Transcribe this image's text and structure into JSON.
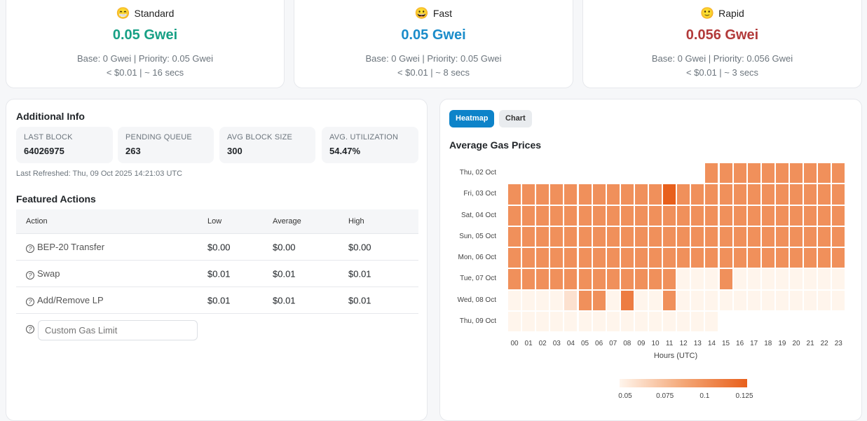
{
  "gas_cards": [
    {
      "emoji": "😁",
      "label": "Standard",
      "value": "0.05 Gwei",
      "color": "#17a085",
      "detail": "Base: 0 Gwei | Priority: 0.05 Gwei",
      "cost": "< $0.01 | ~ 16 secs"
    },
    {
      "emoji": "😀",
      "label": "Fast",
      "value": "0.05 Gwei",
      "color": "#1a8cca",
      "detail": "Base: 0 Gwei | Priority: 0.05 Gwei",
      "cost": "< $0.01 | ~ 8 secs"
    },
    {
      "emoji": "🙂",
      "label": "Rapid",
      "value": "0.056 Gwei",
      "color": "#b23a3a",
      "detail": "Base: 0 Gwei | Priority: 0.056 Gwei",
      "cost": "< $0.01 | ~ 3 secs"
    }
  ],
  "additional": {
    "title": "Additional Info",
    "stats": [
      {
        "label": "LAST BLOCK",
        "value": "64026975"
      },
      {
        "label": "PENDING QUEUE",
        "value": "263"
      },
      {
        "label": "AVG BLOCK SIZE",
        "value": "300"
      },
      {
        "label": "AVG. UTILIZATION",
        "value": "54.47%"
      }
    ],
    "refreshed": "Last Refreshed: Thu, 09 Oct 2025 14:21:03 UTC"
  },
  "featured": {
    "title": "Featured Actions",
    "headers": [
      "Action",
      "Low",
      "Average",
      "High"
    ],
    "rows": [
      [
        "BEP-20 Transfer",
        "$0.00",
        "$0.00",
        "$0.00"
      ],
      [
        "Swap",
        "$0.01",
        "$0.01",
        "$0.01"
      ],
      [
        "Add/Remove LP",
        "$0.01",
        "$0.01",
        "$0.01"
      ]
    ],
    "custom_placeholder": "Custom Gas Limit"
  },
  "tabs": {
    "heatmap": "Heatmap",
    "chart": "Chart"
  },
  "chart_data": {
    "type": "heatmap",
    "title": "Average Gas Prices",
    "xlabel": "Hours (UTC)",
    "rows": [
      "Thu, 02 Oct",
      "Fri, 03 Oct",
      "Sat, 04 Oct",
      "Sun, 05 Oct",
      "Mon, 06 Oct",
      "Tue, 07 Oct",
      "Wed, 08 Oct",
      "Thu, 09 Oct"
    ],
    "cols": [
      "00",
      "01",
      "02",
      "03",
      "04",
      "05",
      "06",
      "07",
      "08",
      "09",
      "10",
      "11",
      "12",
      "13",
      "14",
      "15",
      "16",
      "17",
      "18",
      "19",
      "20",
      "21",
      "22",
      "23"
    ],
    "values": [
      [
        null,
        null,
        null,
        null,
        null,
        null,
        null,
        null,
        null,
        null,
        null,
        null,
        null,
        null,
        0.1,
        0.1,
        0.1,
        0.1,
        0.1,
        0.1,
        0.1,
        0.1,
        0.1,
        0.1
      ],
      [
        0.1,
        0.1,
        0.1,
        0.1,
        0.1,
        0.1,
        0.1,
        0.1,
        0.1,
        0.1,
        0.1,
        0.125,
        0.1,
        0.1,
        0.1,
        0.1,
        0.1,
        0.1,
        0.1,
        0.1,
        0.1,
        0.1,
        0.1,
        0.1
      ],
      [
        0.1,
        0.1,
        0.1,
        0.1,
        0.1,
        0.1,
        0.1,
        0.1,
        0.1,
        0.1,
        0.1,
        0.1,
        0.1,
        0.1,
        0.1,
        0.1,
        0.1,
        0.1,
        0.1,
        0.1,
        0.1,
        0.1,
        0.1,
        0.1
      ],
      [
        0.1,
        0.1,
        0.1,
        0.1,
        0.1,
        0.1,
        0.1,
        0.1,
        0.1,
        0.1,
        0.1,
        0.1,
        0.1,
        0.1,
        0.1,
        0.1,
        0.1,
        0.1,
        0.1,
        0.1,
        0.1,
        0.1,
        0.1,
        0.1
      ],
      [
        0.1,
        0.1,
        0.1,
        0.1,
        0.1,
        0.1,
        0.1,
        0.1,
        0.1,
        0.1,
        0.1,
        0.1,
        0.1,
        0.1,
        0.1,
        0.1,
        0.1,
        0.1,
        0.1,
        0.1,
        0.1,
        0.1,
        0.1,
        0.1
      ],
      [
        0.1,
        0.1,
        0.1,
        0.1,
        0.1,
        0.1,
        0.1,
        0.1,
        0.1,
        0.1,
        0.1,
        0.1,
        0.05,
        0.05,
        0.05,
        0.1,
        0.05,
        0.05,
        0.05,
        0.05,
        0.05,
        0.05,
        0.05,
        0.05
      ],
      [
        0.05,
        0.05,
        0.05,
        0.05,
        0.06,
        0.1,
        0.1,
        0.05,
        0.11,
        0.05,
        0.05,
        0.1,
        0.05,
        0.05,
        0.05,
        0.05,
        0.05,
        0.05,
        0.05,
        0.05,
        0.05,
        0.05,
        0.05,
        0.05
      ],
      [
        0.05,
        0.05,
        0.05,
        0.05,
        0.05,
        0.05,
        0.05,
        0.05,
        0.05,
        0.05,
        0.05,
        0.05,
        0.05,
        0.05,
        0.05,
        null,
        null,
        null,
        null,
        null,
        null,
        null,
        null,
        null
      ]
    ],
    "scale": {
      "min": 0.05,
      "max": 0.125,
      "ticks": [
        "0.05",
        "0.075",
        "0.1",
        "0.125"
      ],
      "colors": [
        "#fff5ec",
        "#e8601c"
      ]
    }
  }
}
